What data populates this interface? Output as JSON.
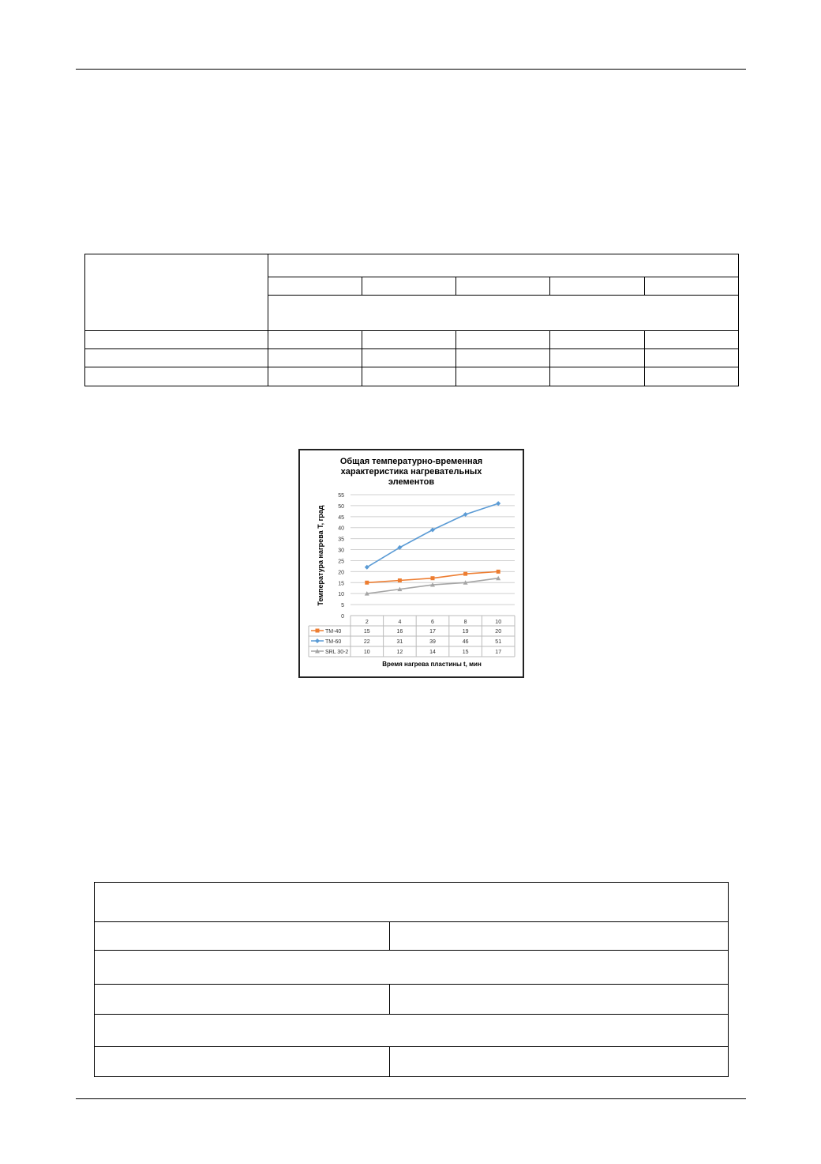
{
  "chart_data": {
    "type": "line",
    "title": "Общая температурно-временная характеристика нагревательных элементов",
    "title_lines": [
      "Общая температурно-временная",
      "характеристика нагревательных",
      "элементов"
    ],
    "xlabel": "Время нагрева пластины t, мин",
    "ylabel": "Температура нагрева T, град",
    "categories": [
      "2",
      "4",
      "6",
      "8",
      "10"
    ],
    "ylim": [
      0,
      55
    ],
    "yticks": [
      "0",
      "5",
      "10",
      "15",
      "20",
      "25",
      "30",
      "35",
      "40",
      "45",
      "50",
      "55"
    ],
    "grid": true,
    "legend": "data-table-left",
    "series": [
      {
        "name": "TM-40",
        "values": [
          15,
          16,
          17,
          19,
          20
        ],
        "color": "#ed7d31",
        "marker": "square"
      },
      {
        "name": "TM-60",
        "values": [
          22,
          31,
          39,
          46,
          51
        ],
        "color": "#5b9bd5",
        "marker": "diamond"
      },
      {
        "name": "SRL 30-2",
        "values": [
          10,
          12,
          14,
          15,
          17
        ],
        "color": "#a5a5a5",
        "marker": "triangle"
      }
    ]
  }
}
